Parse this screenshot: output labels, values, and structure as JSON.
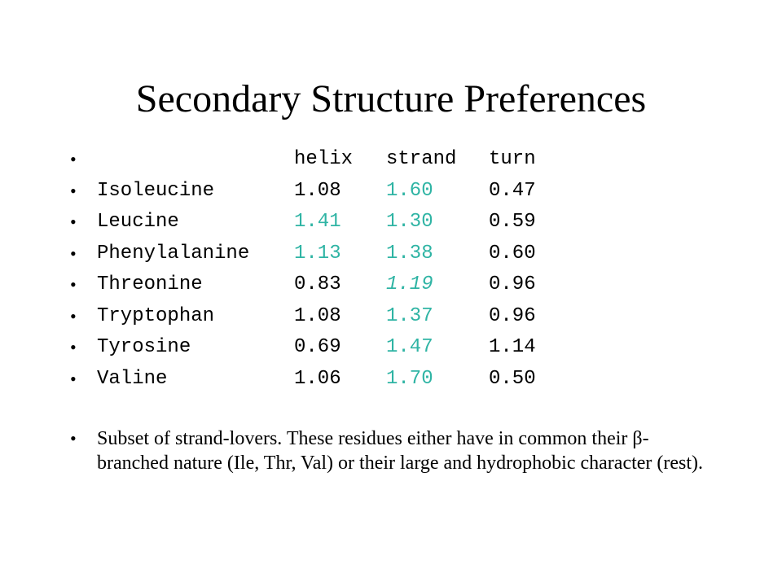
{
  "slide": {
    "title": "Secondary Structure Preferences",
    "bullet_glyph": "•",
    "header": {
      "helix": "helix",
      "strand": "strand",
      "turn": "turn"
    },
    "rows": [
      {
        "name": "Isoleucine",
        "helix": "1.08",
        "strand": "1.60",
        "turn": "0.47"
      },
      {
        "name": "Leucine",
        "helix": "1.41",
        "strand": "1.30",
        "turn": "0.59"
      },
      {
        "name": "Phenylalanine",
        "helix": "1.13",
        "strand": "1.38",
        "turn": "0.60"
      },
      {
        "name": "Threonine",
        "helix": "0.83",
        "strand": "1.19",
        "turn": "0.96"
      },
      {
        "name": "Tryptophan",
        "helix": "1.08",
        "strand": "1.37",
        "turn": "0.96"
      },
      {
        "name": "Tyrosine",
        "helix": "0.69",
        "strand": "1.47",
        "turn": "1.14"
      },
      {
        "name": "Valine",
        "helix": "1.06",
        "strand": "1.70",
        "turn": "0.50"
      }
    ],
    "note": "Subset of strand-lovers. These residues either have in common their β-branched nature (Ile, Thr, Val) or their large and hydrophobic character (rest).",
    "colors": {
      "text": "#000000",
      "highlight": "#2fb4a4",
      "background": "#ffffff"
    }
  }
}
